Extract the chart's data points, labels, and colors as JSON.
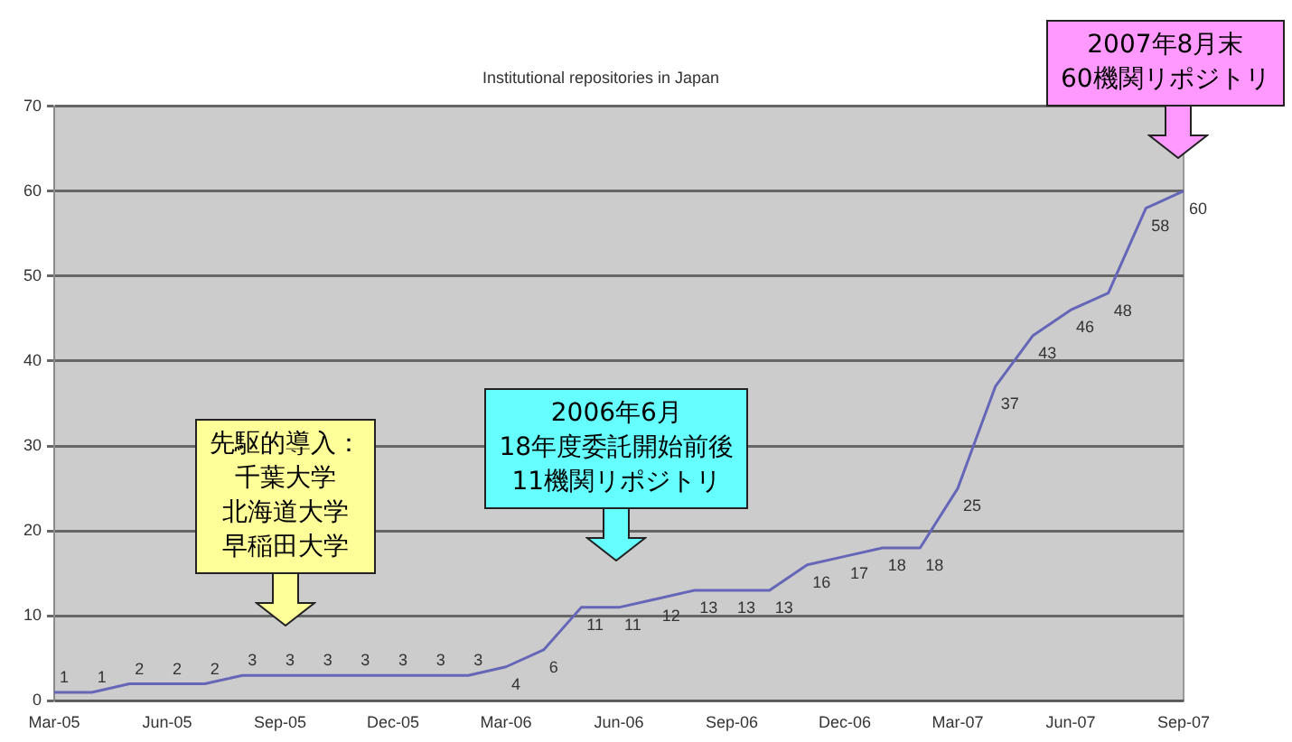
{
  "chart_data": {
    "type": "line",
    "title": "Institutional repositories in Japan",
    "categories": [
      "Mar-05",
      null,
      null,
      "Jun-05",
      null,
      null,
      "Sep-05",
      null,
      null,
      "Dec-05",
      null,
      null,
      "Mar-06",
      null,
      null,
      "Jun-06",
      null,
      null,
      "Sep-06",
      null,
      null,
      "Dec-06",
      null,
      null,
      "Mar-07",
      null,
      null,
      "Jun-07",
      null,
      null,
      "Sep-07"
    ],
    "values": [
      1,
      1,
      2,
      2,
      2,
      3,
      3,
      3,
      3,
      3,
      3,
      3,
      4,
      6,
      11,
      11,
      12,
      13,
      13,
      13,
      16,
      17,
      18,
      18,
      25,
      37,
      43,
      46,
      48,
      58,
      60
    ],
    "color": "#6666b8",
    "ylim": [
      0,
      70
    ],
    "yticks": [
      0,
      10,
      20,
      30,
      40,
      50,
      60,
      70
    ],
    "grid": "y",
    "data_labels": true,
    "marker": "none",
    "legend": false,
    "annotations": [
      "先駆的導入：",
      "千葉大学",
      "北海道大学",
      "早稲田大学",
      "2006年6月\n18年度委託開始前後\n11機関リポジトリ",
      "2007年8月末\n60機関リポジトリ"
    ]
  }
}
